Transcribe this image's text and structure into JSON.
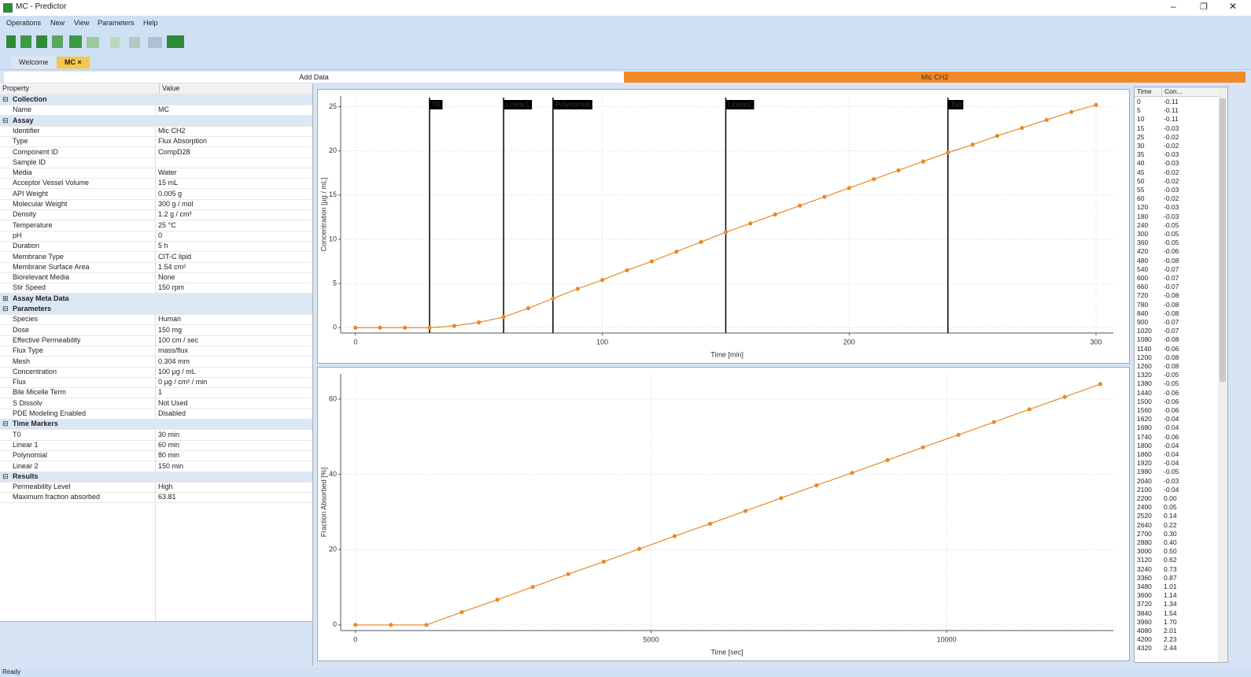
{
  "window": {
    "title": "MC - Predictor"
  },
  "menu": [
    "Operations",
    "New",
    "View",
    "Parameters",
    "Help"
  ],
  "tabs": [
    "Welcome",
    "MC"
  ],
  "panels": {
    "add_data": "Add Data",
    "dataset": "Mic CH2"
  },
  "properties": {
    "headers": [
      "Property",
      "Value"
    ],
    "sections": [
      {
        "name": "Collection",
        "rows": [
          [
            "Name",
            "MC"
          ]
        ]
      },
      {
        "name": "Assay",
        "rows": [
          [
            "Identifier",
            "Mic CH2"
          ],
          [
            "Type",
            "Flux Absorption"
          ],
          [
            "Component ID",
            "CompD28"
          ],
          [
            "Sample ID"
          ],
          [
            "Media",
            "Water"
          ],
          [
            "Acceptor Vessel Volume",
            "15 mL"
          ],
          [
            "API Weight",
            "0.005 g"
          ],
          [
            "Molecular Weight",
            "300 g / mol"
          ],
          [
            "Density",
            "1.2 g / cm³"
          ],
          [
            "Temperature",
            "25 °C"
          ],
          [
            "pH",
            "0"
          ],
          [
            "Duration",
            "5 h"
          ],
          [
            "Membrane Type",
            "CIT-C lipid"
          ],
          [
            "Membrane Surface Area",
            "1.54 cm²"
          ],
          [
            "Biorelevant Media",
            "None"
          ],
          [
            "Stir Speed",
            "150 rpm"
          ]
        ]
      },
      {
        "name": "Assay Meta Data",
        "collapsed": true
      },
      {
        "name": "Parameters",
        "rows": [
          [
            "Species",
            "Human"
          ],
          [
            "Dose",
            "150 mg"
          ],
          [
            "Effective Permeability",
            "100 cm / sec"
          ],
          [
            "Flux Type",
            "mass/flux"
          ],
          [
            "Mesh",
            "0.304 mm"
          ],
          [
            "Concentration",
            "100 µg / mL"
          ],
          [
            "Flux",
            "0 µg / cm² / min"
          ],
          [
            "Bile Micelle Term",
            "1"
          ],
          [
            "S Dissolv",
            "Not Used"
          ],
          [
            "PDE Modeling Enabled",
            "Disabled"
          ]
        ]
      },
      {
        "name": "Time Markers",
        "rows": [
          [
            "T0",
            "30 min"
          ],
          [
            "Linear 1",
            "60 min"
          ],
          [
            "Polynomial",
            "80 min"
          ],
          [
            "Linear 2",
            "150 min"
          ]
        ]
      },
      {
        "name": "Results",
        "rows": [
          [
            "Permeability Level",
            "High"
          ],
          [
            "Maximum fraction absorbed",
            "63.81"
          ]
        ]
      }
    ]
  },
  "table": {
    "headers": [
      "Time",
      "Con..."
    ],
    "rows": [
      [
        "0",
        "-0.11"
      ],
      [
        "5",
        "-0.11"
      ],
      [
        "10",
        "-0.11"
      ],
      [
        "15",
        "-0.03"
      ],
      [
        "25",
        "-0.02"
      ],
      [
        "30",
        "-0.02"
      ],
      [
        "35",
        "-0.03"
      ],
      [
        "40",
        "-0.03"
      ],
      [
        "45",
        "-0.02"
      ],
      [
        "50",
        "-0.02"
      ],
      [
        "55",
        "-0.03"
      ],
      [
        "60",
        "-0.02"
      ],
      [
        "120",
        "-0.03"
      ],
      [
        "180",
        "-0.03"
      ],
      [
        "240",
        "-0.05"
      ],
      [
        "300",
        "-0.05"
      ],
      [
        "360",
        "-0.05"
      ],
      [
        "420",
        "-0.06"
      ],
      [
        "480",
        "-0.08"
      ],
      [
        "540",
        "-0.07"
      ],
      [
        "600",
        "-0.07"
      ],
      [
        "660",
        "-0.07"
      ],
      [
        "720",
        "-0.08"
      ],
      [
        "780",
        "-0.08"
      ],
      [
        "840",
        "-0.08"
      ],
      [
        "900",
        "-0.07"
      ],
      [
        "1020",
        "-0.07"
      ],
      [
        "1080",
        "-0.08"
      ],
      [
        "1140",
        "-0.06"
      ],
      [
        "1200",
        "-0.08"
      ],
      [
        "1260",
        "-0.08"
      ],
      [
        "1320",
        "-0.05"
      ],
      [
        "1380",
        "-0.05"
      ],
      [
        "1440",
        "-0.06"
      ],
      [
        "1500",
        "-0.06"
      ],
      [
        "1560",
        "-0.06"
      ],
      [
        "1620",
        "-0.04"
      ],
      [
        "1680",
        "-0.04"
      ],
      [
        "1740",
        "-0.06"
      ],
      [
        "1800",
        "-0.04"
      ],
      [
        "1860",
        "-0.04"
      ],
      [
        "1920",
        "-0.04"
      ],
      [
        "1980",
        "-0.05"
      ],
      [
        "2040",
        "-0.03"
      ],
      [
        "2100",
        "-0.04"
      ],
      [
        "2200",
        "0.00"
      ],
      [
        "2400",
        "0.05"
      ],
      [
        "2520",
        "0.14"
      ],
      [
        "2640",
        "0.22"
      ],
      [
        "2700",
        "0.30"
      ],
      [
        "2880",
        "0.40"
      ],
      [
        "3000",
        "0.50"
      ],
      [
        "3120",
        "0.62"
      ],
      [
        "3240",
        "0.73"
      ],
      [
        "3360",
        "0.87"
      ],
      [
        "3480",
        "1.01"
      ],
      [
        "3600",
        "1.14"
      ],
      [
        "3720",
        "1.34"
      ],
      [
        "3840",
        "1.54"
      ],
      [
        "3960",
        "1.70"
      ],
      [
        "4080",
        "2.01"
      ],
      [
        "4200",
        "2.23"
      ],
      [
        "4320",
        "2.44"
      ]
    ]
  },
  "status": "Ready",
  "chart_data": [
    {
      "type": "line",
      "xlabel": "Time [min]",
      "ylabel": "Concentration [µg / mL]",
      "x": [
        0,
        10,
        20,
        30,
        40,
        50,
        60,
        70,
        80,
        90,
        100,
        110,
        120,
        130,
        140,
        150,
        160,
        170,
        180,
        190,
        200,
        210,
        220,
        230,
        240,
        250,
        260,
        270,
        280,
        290,
        300
      ],
      "series": [
        {
          "color": "#e8892b",
          "values": [
            0,
            0,
            0,
            0,
            0.2,
            0.6,
            1.2,
            2.2,
            3.3,
            4.4,
            5.4,
            6.5,
            7.5,
            8.6,
            9.7,
            10.8,
            11.8,
            12.8,
            13.8,
            14.8,
            15.8,
            16.8,
            17.8,
            18.8,
            19.8,
            20.7,
            21.7,
            22.6,
            23.5,
            24.4,
            25.2
          ]
        }
      ],
      "xlim": [
        -6,
        307
      ],
      "ylim": [
        -0.6,
        26.2
      ],
      "xticks": [
        0,
        100,
        200,
        300
      ],
      "yticks": [
        0,
        5,
        10,
        15,
        20,
        25
      ],
      "grid": true,
      "markers": [
        {
          "label": "T0",
          "x": 30
        },
        {
          "label": "Linear1",
          "x": 60
        },
        {
          "label": "Polynomial",
          "x": 80
        },
        {
          "label": "Linear2",
          "x": 150
        },
        {
          "label": "Tail",
          "x": 240
        }
      ]
    },
    {
      "type": "line",
      "xlabel": "Time [sec]",
      "ylabel": "Fraction Absorbed [%]",
      "x": [
        0,
        600,
        1200,
        1800,
        2400,
        3000,
        3600,
        4200,
        4800,
        5400,
        6000,
        6600,
        7200,
        7800,
        8400,
        9000,
        9600,
        10200,
        10800,
        11400,
        12000,
        12600
      ],
      "series": [
        {
          "color": "#e8892b",
          "values": [
            0,
            0,
            0,
            3.4,
            6.7,
            10.1,
            13.5,
            16.8,
            20.2,
            23.6,
            26.9,
            30.3,
            33.7,
            37.1,
            40.4,
            43.8,
            47.2,
            50.5,
            53.9,
            57.3,
            60.6,
            64.0
          ]
        }
      ],
      "xlim": [
        -250,
        12820
      ],
      "ylim": [
        -1.5,
        66.7
      ],
      "xticks": [
        0,
        5000,
        10000
      ],
      "yticks": [
        0,
        20,
        40,
        60
      ],
      "grid": true
    }
  ]
}
